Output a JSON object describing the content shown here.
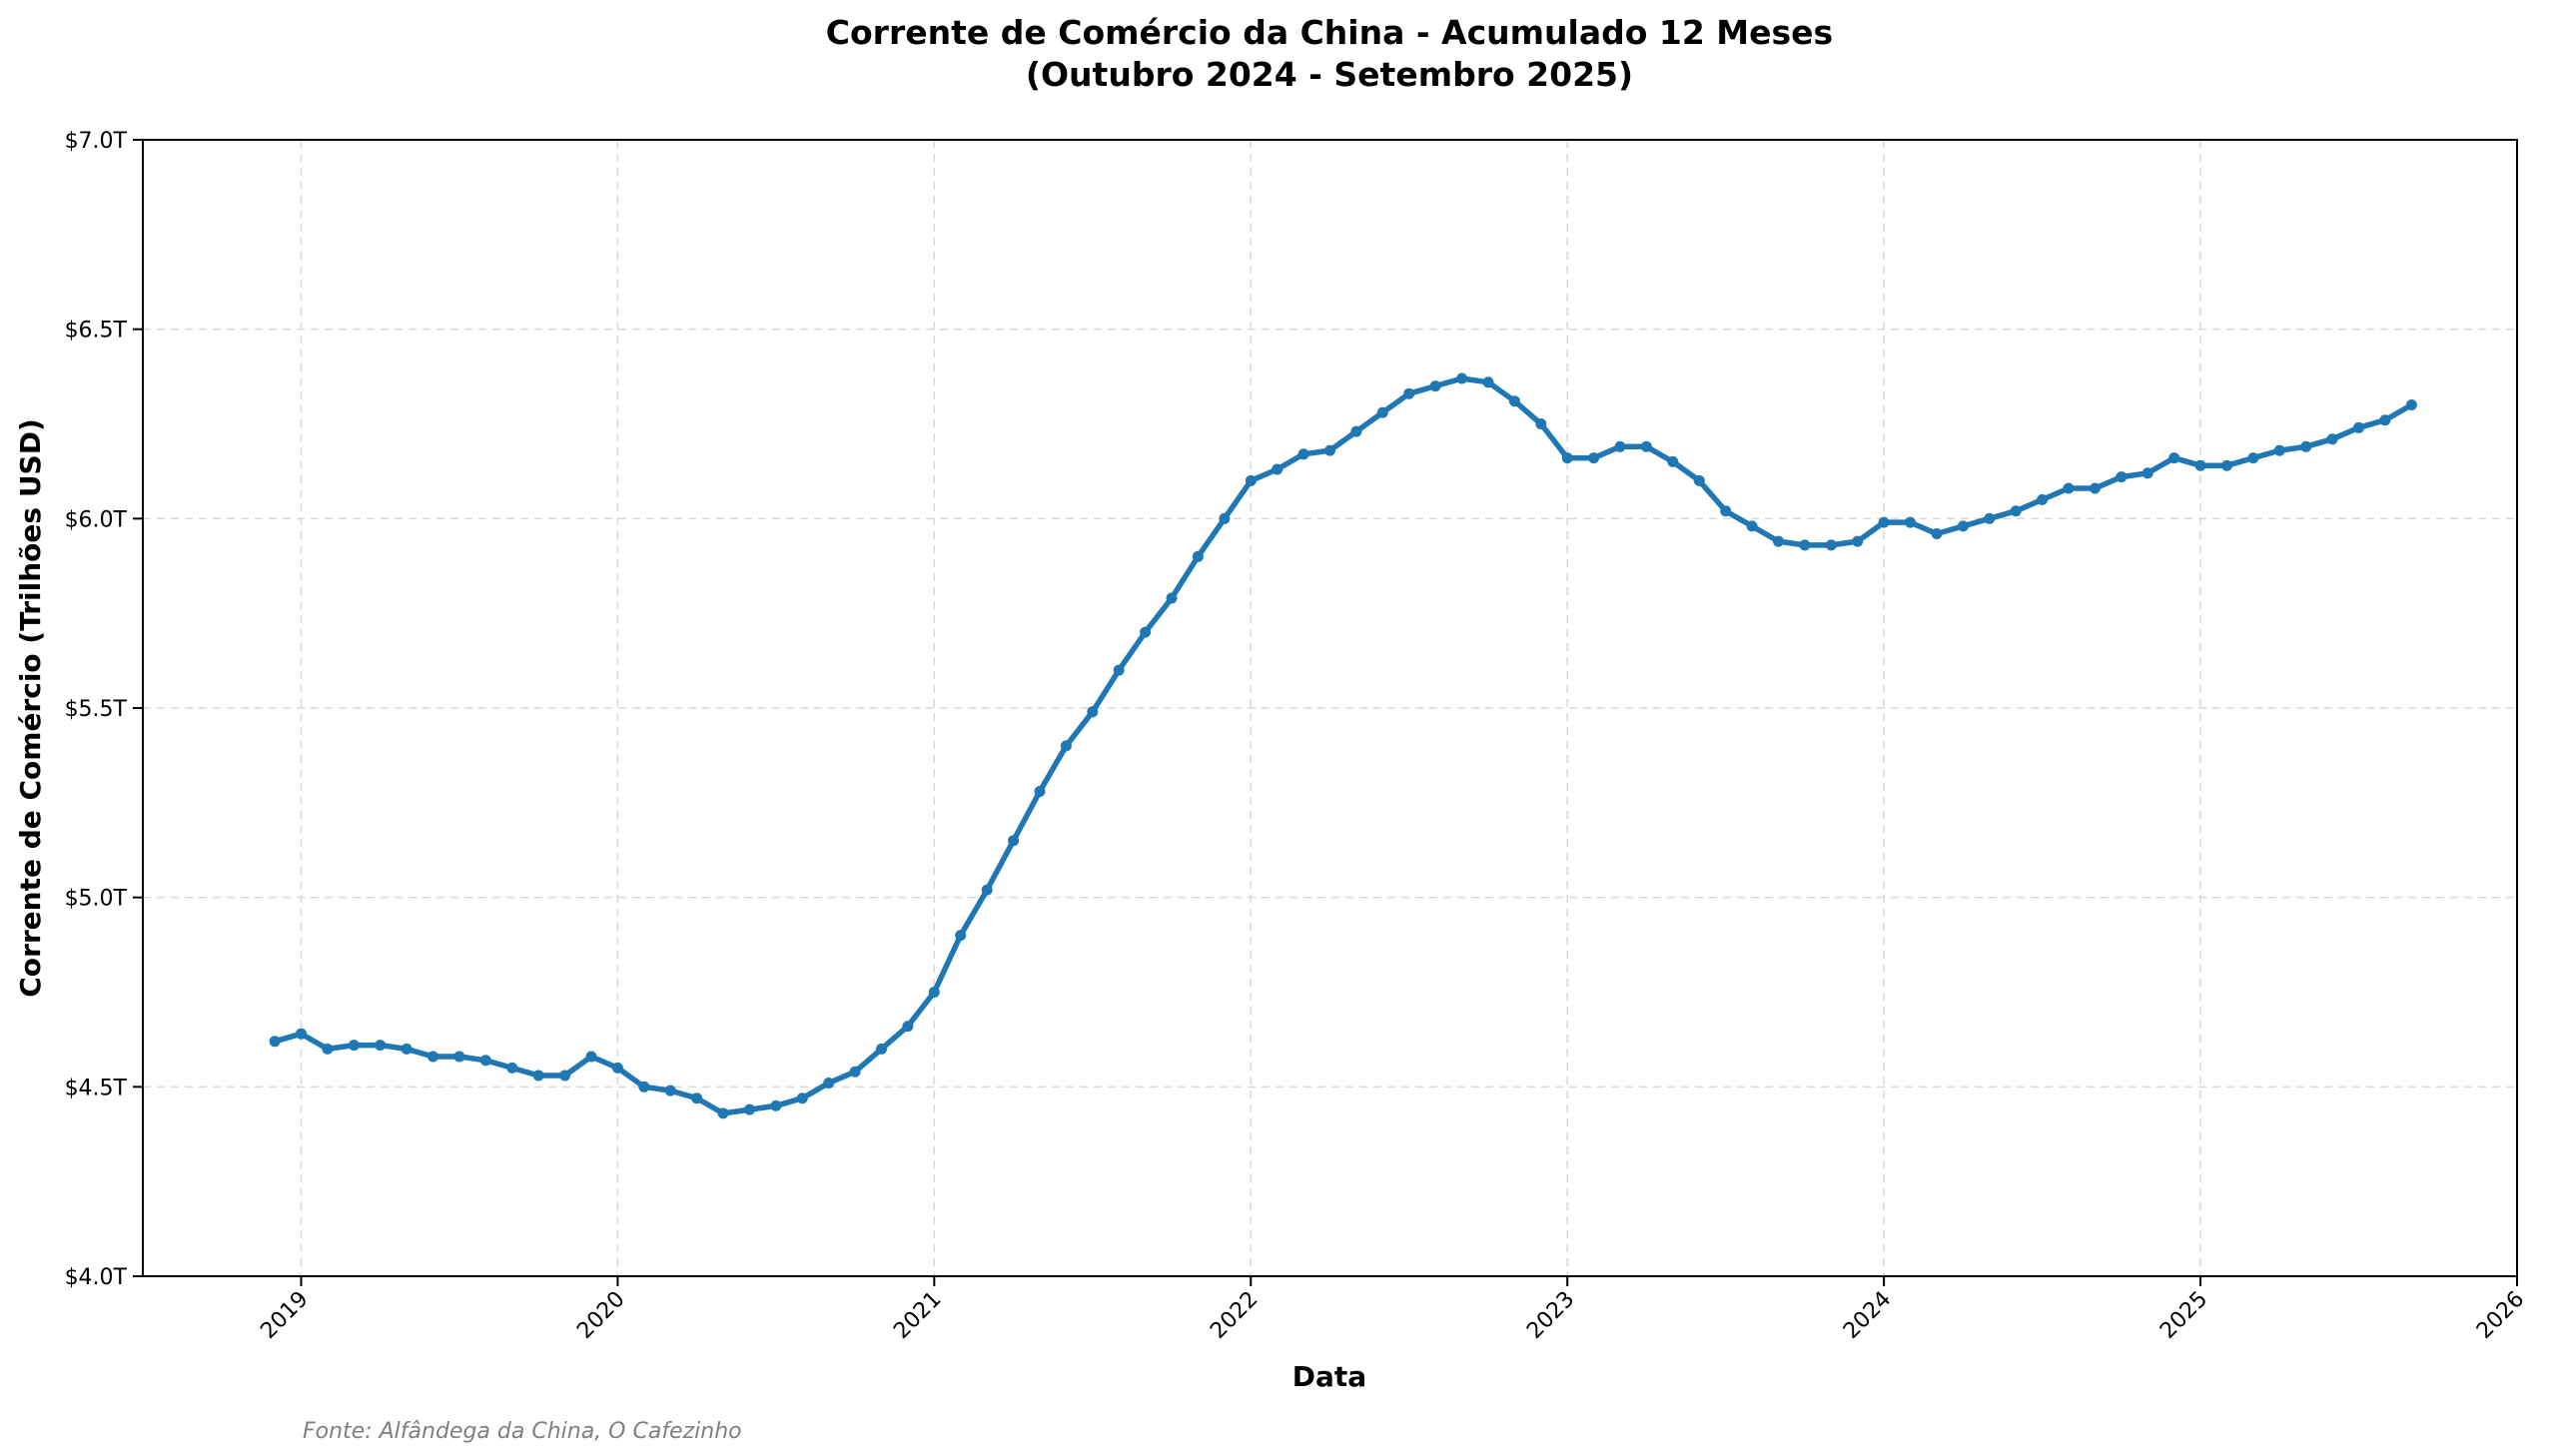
{
  "chart_data": {
    "type": "line",
    "title": "Corrente de Comércio da China - Acumulado 12 Meses",
    "subtitle": "(Outubro 2024 - Setembro 2025)",
    "xlabel": "Data",
    "ylabel": "Corrente de Comércio (Trilhões USD)",
    "source": "Fonte: Alfândega da China, O Cafezinho",
    "xlim": [
      "2018-07",
      "2026-01"
    ],
    "ylim": [
      4.0,
      7.0
    ],
    "x_ticks": [
      "2019",
      "2020",
      "2021",
      "2022",
      "2023",
      "2024",
      "2025",
      "2026"
    ],
    "y_ticks": [
      {
        "value": 4.0,
        "label": "$4.0T"
      },
      {
        "value": 4.5,
        "label": "$4.5T"
      },
      {
        "value": 5.0,
        "label": "$5.0T"
      },
      {
        "value": 5.5,
        "label": "$5.5T"
      },
      {
        "value": 6.0,
        "label": "$6.0T"
      },
      {
        "value": 6.5,
        "label": "$6.5T"
      },
      {
        "value": 7.0,
        "label": "$7.0T"
      }
    ],
    "grid": true,
    "legend": "none",
    "line_color": "#1f77b4",
    "series": [
      {
        "x": [
          "2018-12",
          "2019-01",
          "2019-02",
          "2019-03",
          "2019-04",
          "2019-05",
          "2019-06",
          "2019-07",
          "2019-08",
          "2019-09",
          "2019-10",
          "2019-11",
          "2019-12",
          "2020-01",
          "2020-02",
          "2020-03",
          "2020-04",
          "2020-05",
          "2020-06",
          "2020-07",
          "2020-08",
          "2020-09",
          "2020-10",
          "2020-11",
          "2020-12",
          "2021-01",
          "2021-02",
          "2021-03",
          "2021-04",
          "2021-05",
          "2021-06",
          "2021-07",
          "2021-08",
          "2021-09",
          "2021-10",
          "2021-11",
          "2021-12",
          "2022-01",
          "2022-02",
          "2022-03",
          "2022-04",
          "2022-05",
          "2022-06",
          "2022-07",
          "2022-08",
          "2022-09",
          "2022-10",
          "2022-11",
          "2022-12",
          "2023-01",
          "2023-02",
          "2023-03",
          "2023-04",
          "2023-05",
          "2023-06",
          "2023-07",
          "2023-08",
          "2023-09",
          "2023-10",
          "2023-11",
          "2023-12",
          "2024-01",
          "2024-02",
          "2024-03",
          "2024-04",
          "2024-05",
          "2024-06",
          "2024-07",
          "2024-08",
          "2024-09",
          "2024-10",
          "2024-11",
          "2024-12",
          "2025-01",
          "2025-02",
          "2025-03",
          "2025-04",
          "2025-05",
          "2025-06",
          "2025-07",
          "2025-08",
          "2025-09"
        ],
        "values": [
          4.62,
          4.64,
          4.6,
          4.61,
          4.61,
          4.6,
          4.58,
          4.58,
          4.57,
          4.55,
          4.53,
          4.53,
          4.58,
          4.55,
          4.5,
          4.49,
          4.47,
          4.43,
          4.44,
          4.45,
          4.47,
          4.51,
          4.54,
          4.6,
          4.66,
          4.75,
          4.9,
          5.02,
          5.15,
          5.28,
          5.4,
          5.49,
          5.6,
          5.7,
          5.79,
          5.9,
          6.0,
          6.1,
          6.13,
          6.17,
          6.18,
          6.23,
          6.28,
          6.33,
          6.35,
          6.37,
          6.36,
          6.31,
          6.25,
          6.16,
          6.16,
          6.19,
          6.19,
          6.15,
          6.1,
          6.02,
          5.98,
          5.94,
          5.93,
          5.93,
          5.94,
          5.99,
          5.99,
          5.96,
          5.98,
          6.0,
          6.02,
          6.05,
          6.08,
          6.08,
          6.11,
          6.12,
          6.16,
          6.14,
          6.14,
          6.16,
          6.18,
          6.19,
          6.21,
          6.24,
          6.26,
          6.3
        ]
      }
    ]
  }
}
